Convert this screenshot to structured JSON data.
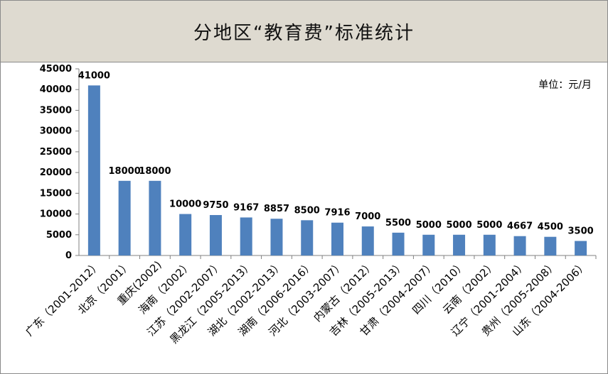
{
  "chart_data": {
    "type": "bar",
    "title": "分地区“教育费”标准统计",
    "unit_label": "单位：元/月",
    "categories": [
      "广东（2001-2012）",
      "北京（2001）",
      "重庆(2002)",
      "海南（2002）",
      "江苏（2002-2007）",
      "黑龙江（2005-2013）",
      "湖北（2002-2013）",
      "湖南（2006-2016）",
      "河北（2003-2007）",
      "内蒙古（2012）",
      "吉林（2005-2013）",
      "甘肃（2004-2007）",
      "四川（2010）",
      "云南（2002）",
      "辽宁（2001-2004）",
      "贵州（2005-2008）",
      "山东（2004-2006）"
    ],
    "values": [
      41000,
      18000,
      18000,
      10000,
      9750,
      9167,
      8857,
      8500,
      7916,
      7000,
      5500,
      5000,
      5000,
      5000,
      4667,
      4500,
      3500
    ],
    "ylim": [
      0,
      45000
    ],
    "yticks": [
      0,
      5000,
      10000,
      15000,
      20000,
      25000,
      30000,
      35000,
      40000,
      45000
    ],
    "bar_color": "#4f81bd",
    "grid": false,
    "legend": "none"
  }
}
